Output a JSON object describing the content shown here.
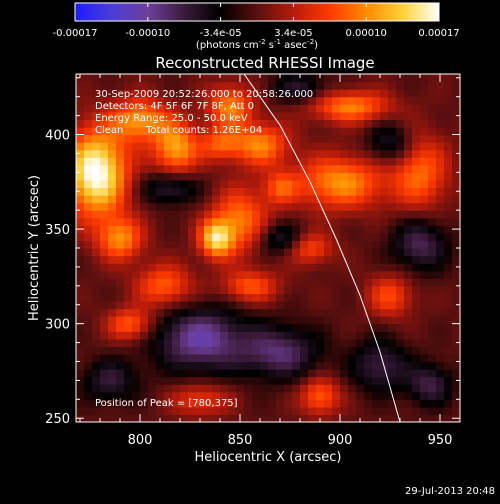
{
  "colors": {
    "background": "#000000",
    "text": "#ffffff",
    "limb": "#ffffff"
  },
  "colorbar": {
    "ticks": [
      "-0.00017",
      "-0.00010",
      "-3.4e-05",
      "3.4e-05",
      "0.00010",
      "0.00017"
    ],
    "units_parts": {
      "a": "(photons cm",
      "b": "-2",
      "c": " s",
      "d": "-1",
      "e": " asec",
      "f": "-2",
      "g": ")"
    },
    "colormap": [
      "#1c1cff",
      "#4b3dd6",
      "#6e3f9a",
      "#3a1b3a",
      "#000000",
      "#5a0f0f",
      "#b71b0b",
      "#ff3a00",
      "#ff8a00",
      "#ffd23a",
      "#ffffff"
    ],
    "range": [
      -0.00017,
      0.00017
    ]
  },
  "annotations": {
    "time_range": "30-Sep-2009 20:52:26.000 to 20:58:26.000",
    "detectors": "Detectors: 4F 5F 6F 7F 8F, Att 0",
    "energy": "Energy Range: 25.0 - 50.0 keV",
    "method": "Clean",
    "counts": "Total counts: 1.26E+04",
    "peak": "Position of Peak = [780,375]"
  },
  "footer": {
    "date": "29-Jul-2013 20:48"
  },
  "chart_data": {
    "type": "heatmap",
    "title": "Reconstructed RHESSI Image",
    "xlabel": "Heliocentric X (arcsec)",
    "ylabel": "Heliocentric Y (arcsec)",
    "xlim": [
      768,
      960
    ],
    "ylim": [
      248,
      432
    ],
    "xticks": [
      800,
      850,
      900,
      950
    ],
    "yticks": [
      250,
      300,
      350,
      400
    ],
    "peak_position": [
      780,
      375
    ],
    "limb_curve": [
      [
        852,
        432
      ],
      [
        870,
        405
      ],
      [
        885,
        375
      ],
      [
        898,
        345
      ],
      [
        910,
        315
      ],
      [
        920,
        285
      ],
      [
        930,
        248
      ]
    ],
    "blobs": [
      {
        "x": 778,
        "y": 380,
        "sx": 11,
        "sy": 16,
        "amp": 1.25
      },
      {
        "x": 800,
        "y": 408,
        "sx": 10,
        "sy": 8,
        "amp": 0.75
      },
      {
        "x": 818,
        "y": 393,
        "sx": 8,
        "sy": 10,
        "amp": 0.8
      },
      {
        "x": 845,
        "y": 415,
        "sx": 8,
        "sy": 8,
        "amp": 0.7
      },
      {
        "x": 860,
        "y": 395,
        "sx": 10,
        "sy": 8,
        "amp": 0.7
      },
      {
        "x": 905,
        "y": 415,
        "sx": 14,
        "sy": 6,
        "amp": 0.7
      },
      {
        "x": 900,
        "y": 375,
        "sx": 16,
        "sy": 10,
        "amp": 0.75
      },
      {
        "x": 940,
        "y": 380,
        "sx": 10,
        "sy": 14,
        "amp": 0.6
      },
      {
        "x": 790,
        "y": 345,
        "sx": 8,
        "sy": 8,
        "amp": 0.7
      },
      {
        "x": 850,
        "y": 355,
        "sx": 10,
        "sy": 12,
        "amp": 0.65
      },
      {
        "x": 838,
        "y": 345,
        "sx": 6,
        "sy": 7,
        "amp": 0.9
      },
      {
        "x": 885,
        "y": 340,
        "sx": 8,
        "sy": 6,
        "amp": 0.5
      },
      {
        "x": 812,
        "y": 320,
        "sx": 10,
        "sy": 8,
        "amp": 0.6
      },
      {
        "x": 855,
        "y": 320,
        "sx": 10,
        "sy": 6,
        "amp": 0.55
      },
      {
        "x": 795,
        "y": 300,
        "sx": 8,
        "sy": 6,
        "amp": 0.6
      },
      {
        "x": 925,
        "y": 315,
        "sx": 8,
        "sy": 8,
        "amp": 0.5
      },
      {
        "x": 890,
        "y": 262,
        "sx": 7,
        "sy": 7,
        "amp": 0.6
      },
      {
        "x": 830,
        "y": 260,
        "sx": 10,
        "sy": 6,
        "amp": 0.45
      },
      {
        "x": 840,
        "y": 395,
        "sx": 7,
        "sy": 6,
        "amp": 0.5
      },
      {
        "x": 870,
        "y": 372,
        "sx": 6,
        "sy": 6,
        "amp": 0.45
      },
      {
        "x": 815,
        "y": 372,
        "sx": 10,
        "sy": 6,
        "amp": -0.5
      },
      {
        "x": 870,
        "y": 345,
        "sx": 8,
        "sy": 6,
        "amp": -0.45
      },
      {
        "x": 830,
        "y": 292,
        "sx": 16,
        "sy": 12,
        "amp": -0.75
      },
      {
        "x": 870,
        "y": 285,
        "sx": 14,
        "sy": 10,
        "amp": -0.6
      },
      {
        "x": 940,
        "y": 342,
        "sx": 10,
        "sy": 10,
        "amp": -0.55
      },
      {
        "x": 920,
        "y": 278,
        "sx": 10,
        "sy": 10,
        "amp": -0.5
      },
      {
        "x": 945,
        "y": 268,
        "sx": 8,
        "sy": 8,
        "amp": -0.5
      },
      {
        "x": 785,
        "y": 270,
        "sx": 10,
        "sy": 8,
        "amp": -0.45
      },
      {
        "x": 925,
        "y": 395,
        "sx": 8,
        "sy": 8,
        "amp": -0.45
      },
      {
        "x": 880,
        "y": 425,
        "sx": 10,
        "sy": 6,
        "amp": -0.4
      }
    ]
  }
}
